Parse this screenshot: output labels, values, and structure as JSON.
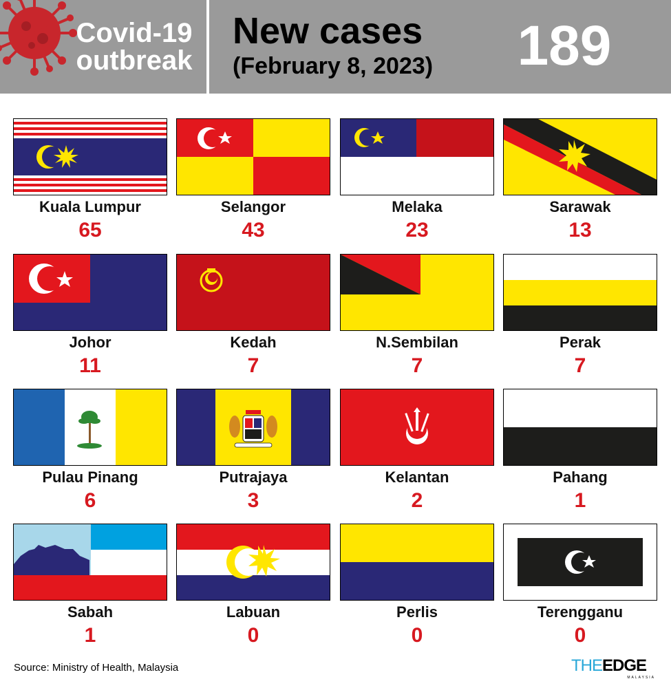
{
  "header": {
    "brand_line1": "Covid-19",
    "brand_line2": "outbreak",
    "headline": "New cases",
    "subheadline": "(February 8, 2023)",
    "total": "189"
  },
  "states": [
    {
      "name": "Kuala Lumpur",
      "cases": "65"
    },
    {
      "name": "Selangor",
      "cases": "43"
    },
    {
      "name": "Melaka",
      "cases": "23"
    },
    {
      "name": "Sarawak",
      "cases": "13"
    },
    {
      "name": "Johor",
      "cases": "11"
    },
    {
      "name": "Kedah",
      "cases": "7"
    },
    {
      "name": "N.Sembilan",
      "cases": "7"
    },
    {
      "name": "Perak",
      "cases": "7"
    },
    {
      "name": "Pulau Pinang",
      "cases": "6"
    },
    {
      "name": "Putrajaya",
      "cases": "3"
    },
    {
      "name": "Kelantan",
      "cases": "2"
    },
    {
      "name": "Pahang",
      "cases": "1"
    },
    {
      "name": "Sabah",
      "cases": "1"
    },
    {
      "name": "Labuan",
      "cases": "0"
    },
    {
      "name": "Perlis",
      "cases": "0"
    },
    {
      "name": "Terengganu",
      "cases": "0"
    }
  ],
  "footer": {
    "source": "Source: Ministry of Health, Malaysia",
    "logo_the": "THE",
    "logo_edge": "EDGE",
    "logo_sub": "MALAYSIA"
  },
  "colors": {
    "header_bg": "#9a9a9a",
    "count_red": "#d71920",
    "flag_red": "#e3171d",
    "flag_blue": "#2a2876",
    "flag_yellow": "#ffe600",
    "flag_black": "#1d1d1b",
    "logo_blue": "#2aa8d8"
  },
  "icons": {
    "header": "virus-icon"
  }
}
